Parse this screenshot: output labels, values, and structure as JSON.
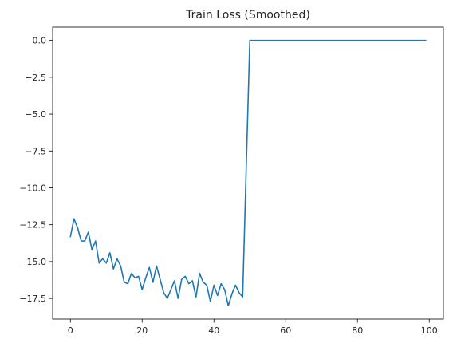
{
  "chart_data": {
    "type": "line",
    "title": "Train Loss (Smoothed)",
    "xlabel": "",
    "ylabel": "",
    "xlim": [
      -4.95,
      103.95
    ],
    "ylim": [
      -18.9,
      0.9
    ],
    "grid": false,
    "legend": "none",
    "x_ticks": [
      0,
      20,
      40,
      60,
      80,
      100
    ],
    "x_tick_labels": [
      "0",
      "20",
      "40",
      "60",
      "80",
      "100"
    ],
    "y_ticks": [
      0,
      -2.5,
      -5,
      -7.5,
      -10,
      -12.5,
      -15,
      -17.5
    ],
    "y_tick_labels": [
      "0.0",
      "−2.5",
      "−5.0",
      "−7.5",
      "−10.0",
      "−12.5",
      "−15.0",
      "−17.5"
    ],
    "series": [
      {
        "color": "#1f77b4",
        "x": [
          0,
          1,
          2,
          3,
          4,
          5,
          6,
          7,
          8,
          9,
          10,
          11,
          12,
          13,
          14,
          15,
          16,
          17,
          18,
          19,
          20,
          21,
          22,
          23,
          24,
          25,
          26,
          27,
          28,
          29,
          30,
          31,
          32,
          33,
          34,
          35,
          36,
          37,
          38,
          39,
          40,
          41,
          42,
          43,
          44,
          45,
          46,
          47,
          48,
          49,
          50,
          51,
          52,
          53,
          54,
          55,
          56,
          57,
          58,
          59,
          60,
          61,
          62,
          63,
          64,
          65,
          66,
          67,
          68,
          69,
          70,
          71,
          72,
          73,
          74,
          75,
          76,
          77,
          78,
          79,
          80,
          81,
          82,
          83,
          84,
          85,
          86,
          87,
          88,
          89,
          90,
          91,
          92,
          93,
          94,
          95,
          96,
          97,
          98,
          99
        ],
        "y": [
          -13.3,
          -12.1,
          -12.7,
          -13.6,
          -13.6,
          -13.0,
          -14.2,
          -13.6,
          -15.1,
          -14.8,
          -15.1,
          -14.4,
          -15.5,
          -14.8,
          -15.3,
          -16.4,
          -16.5,
          -15.8,
          -16.1,
          -16.0,
          -16.9,
          -16.1,
          -15.4,
          -16.4,
          -15.3,
          -16.2,
          -17.1,
          -17.5,
          -16.9,
          -16.3,
          -17.5,
          -16.2,
          -16.0,
          -16.5,
          -16.3,
          -17.4,
          -15.8,
          -16.4,
          -16.6,
          -17.7,
          -16.6,
          -17.3,
          -16.5,
          -16.9,
          -18.0,
          -17.2,
          -16.6,
          -17.1,
          -17.4,
          -8.6,
          0,
          0,
          0,
          0,
          0,
          0,
          0,
          0,
          0,
          0,
          0,
          0,
          0,
          0,
          0,
          0,
          0,
          0,
          0,
          0,
          0,
          0,
          0,
          0,
          0,
          0,
          0,
          0,
          0,
          0,
          0,
          0,
          0,
          0,
          0,
          0,
          0,
          0,
          0,
          0,
          0,
          0,
          0,
          0,
          0,
          0,
          0,
          0,
          0,
          0
        ]
      }
    ]
  }
}
